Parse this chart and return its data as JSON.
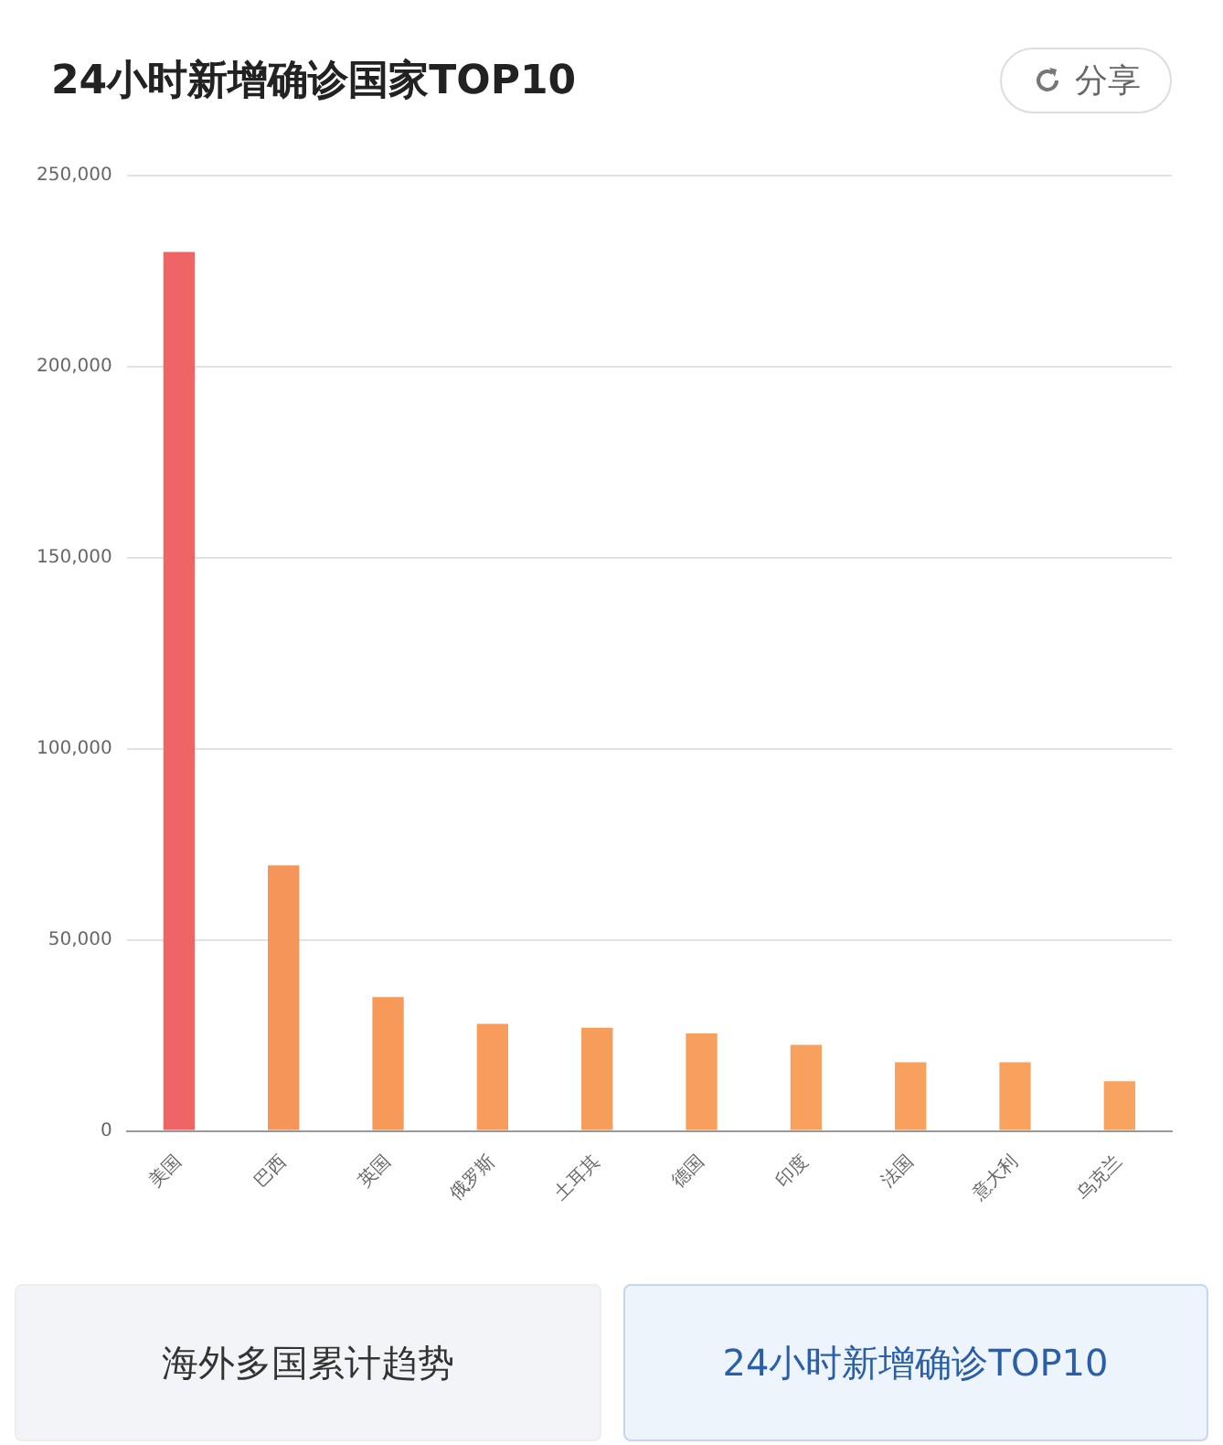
{
  "chart_data": {
    "type": "bar",
    "title": "24小时新增确诊国家TOP10",
    "categories": [
      "美国",
      "巴西",
      "英国",
      "俄罗斯",
      "土耳其",
      "德国",
      "印度",
      "法国",
      "意大利",
      "乌克兰"
    ],
    "values": [
      230000,
      69500,
      35000,
      28000,
      27000,
      25500,
      22500,
      18000,
      18000,
      13000
    ],
    "colors": [
      "#ef6464",
      "#f6955a",
      "#f79959",
      "#f79c5c",
      "#f79d5c",
      "#f89f5d",
      "#f8a05d",
      "#f8a15e",
      "#f8a25e",
      "#f8a35f"
    ],
    "ylim": [
      0,
      250000
    ],
    "yticks": [
      0,
      {
        "value": 50000,
        "label": "50,000"
      },
      {
        "value": 100000,
        "label": "100,000"
      },
      {
        "value": 150000,
        "label": "150,000"
      },
      {
        "value": 200000,
        "label": "200,000"
      },
      {
        "value": 250000,
        "label": "250,000"
      }
    ],
    "grid": "y",
    "legend": false,
    "annotations": [
      "分享",
      "海外多国累计趋势",
      "24小时新增确诊TOP10"
    ]
  }
}
